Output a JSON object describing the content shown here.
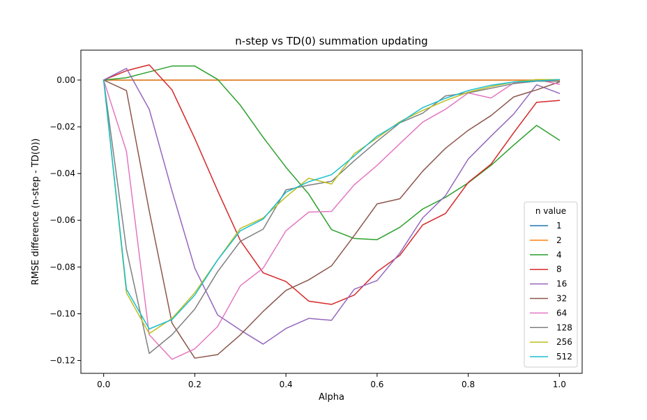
{
  "chart_data": {
    "type": "line",
    "title": "n-step vs TD(0) summation updating",
    "xlabel": "Alpha",
    "ylabel": "RMSE difference (n-step - TD(0))",
    "xlim": [
      -0.05,
      1.05
    ],
    "ylim": [
      -0.1255,
      0.0128
    ],
    "x_ticks": [
      0.0,
      0.2,
      0.4,
      0.6,
      0.8,
      1.0
    ],
    "x_tick_labels": [
      "0.0",
      "0.2",
      "0.4",
      "0.6",
      "0.8",
      "1.0"
    ],
    "y_ticks": [
      0.0,
      -0.02,
      -0.04,
      -0.06,
      -0.08,
      -0.1,
      -0.12
    ],
    "y_tick_labels": [
      "0.00",
      "−0.02",
      "−0.04",
      "−0.06",
      "−0.08",
      "−0.10",
      "−0.12"
    ],
    "grid": false,
    "legend": {
      "title": "n value",
      "placement": "lower-right"
    },
    "x": [
      0.0,
      0.05,
      0.1,
      0.15,
      0.2,
      0.25,
      0.3,
      0.35,
      0.4,
      0.45,
      0.5,
      0.55,
      0.6,
      0.65,
      0.7,
      0.75,
      0.8,
      0.85,
      0.9,
      0.95,
      1.0
    ],
    "series": [
      {
        "name": "1",
        "color": "#1f77b4",
        "values": [
          0,
          0,
          0,
          0,
          0,
          0,
          0,
          0,
          0,
          0,
          0,
          0,
          0,
          0,
          0,
          0,
          0,
          0,
          0,
          0,
          0
        ]
      },
      {
        "name": "2",
        "color": "#ff7f0e",
        "values": [
          0,
          0,
          0,
          0,
          0,
          0,
          0,
          0,
          0,
          0,
          0,
          0,
          0,
          0,
          0,
          0,
          0,
          0,
          0,
          0,
          0
        ]
      },
      {
        "name": "4",
        "color": "#2ca02c",
        "values": [
          0.0,
          0.001,
          0.0035,
          0.006,
          0.006,
          0.0003,
          -0.0108,
          -0.0245,
          -0.0373,
          -0.0488,
          -0.064,
          -0.0678,
          -0.0683,
          -0.063,
          -0.0552,
          -0.0502,
          -0.044,
          -0.0365,
          -0.0278,
          -0.0194,
          -0.0257
        ]
      },
      {
        "name": "8",
        "color": "#d62728",
        "values": [
          0.0,
          0.004,
          0.0065,
          -0.0042,
          -0.025,
          -0.0473,
          -0.0687,
          -0.0825,
          -0.0862,
          -0.0946,
          -0.096,
          -0.092,
          -0.082,
          -0.075,
          -0.062,
          -0.0571,
          -0.0438,
          -0.036,
          -0.0225,
          -0.0095,
          -0.0087
        ]
      },
      {
        "name": "16",
        "color": "#9467bd",
        "values": [
          0.0,
          0.005,
          -0.0125,
          -0.0475,
          -0.0805,
          -0.1005,
          -0.107,
          -0.113,
          -0.1063,
          -0.102,
          -0.1028,
          -0.0895,
          -0.0858,
          -0.074,
          -0.059,
          -0.0495,
          -0.0338,
          -0.024,
          -0.0145,
          -0.002,
          -0.0057
        ]
      },
      {
        "name": "32",
        "color": "#8c564b",
        "values": [
          0.0,
          -0.0045,
          -0.056,
          -0.104,
          -0.119,
          -0.1175,
          -0.109,
          -0.099,
          -0.09,
          -0.0855,
          -0.0795,
          -0.0665,
          -0.053,
          -0.0508,
          -0.039,
          -0.0292,
          -0.0215,
          -0.0152,
          -0.0072,
          -0.0042,
          -0.0008
        ]
      },
      {
        "name": "64",
        "color": "#e377c2",
        "values": [
          0.0,
          -0.0305,
          -0.109,
          -0.1195,
          -0.115,
          -0.1055,
          -0.088,
          -0.0805,
          -0.0645,
          -0.0565,
          -0.0562,
          -0.0448,
          -0.0365,
          -0.0272,
          -0.018,
          -0.0125,
          -0.0055,
          -0.0077,
          -0.0012,
          0.0002,
          -0.0018
        ]
      },
      {
        "name": "128",
        "color": "#7f7f7f",
        "values": [
          0.0,
          -0.0725,
          -0.117,
          -0.109,
          -0.098,
          -0.082,
          -0.069,
          -0.0638,
          -0.047,
          -0.045,
          -0.0433,
          -0.0345,
          -0.0262,
          -0.0183,
          -0.0142,
          -0.0068,
          -0.0055,
          -0.0035,
          -0.0015,
          -0.0005,
          -0.0005
        ]
      },
      {
        "name": "256",
        "color": "#bcbd22",
        "values": [
          0.0,
          -0.091,
          -0.1085,
          -0.102,
          -0.091,
          -0.077,
          -0.0635,
          -0.059,
          -0.05,
          -0.042,
          -0.0445,
          -0.0315,
          -0.0248,
          -0.0178,
          -0.013,
          -0.0088,
          -0.0052,
          -0.0028,
          -0.0008,
          0.0002,
          0.0002
        ]
      },
      {
        "name": "512",
        "color": "#17becf",
        "values": [
          0.0,
          -0.0895,
          -0.1065,
          -0.1025,
          -0.092,
          -0.077,
          -0.0645,
          -0.0595,
          -0.048,
          -0.0435,
          -0.0405,
          -0.0325,
          -0.024,
          -0.0182,
          -0.0118,
          -0.0078,
          -0.0045,
          -0.0022,
          -0.0008,
          -0.0004,
          0.0002
        ]
      }
    ]
  }
}
